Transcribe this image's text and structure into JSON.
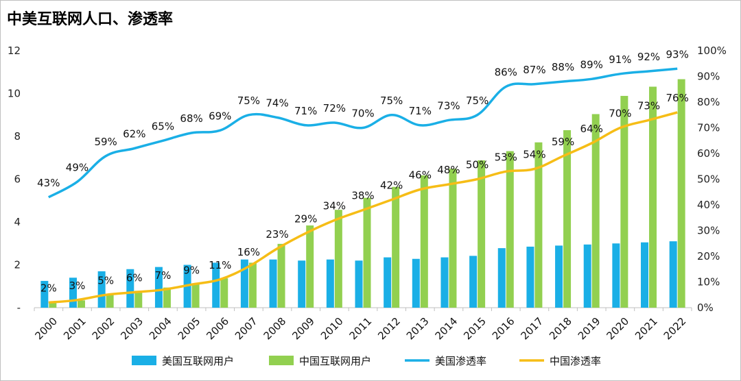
{
  "title": "中美互联网人口、渗透率",
  "colors": {
    "us_users": "#1aafe6",
    "cn_users": "#92d050",
    "us_rate": "#1aafe6",
    "cn_rate": "#f6bd16"
  },
  "chart_data": {
    "type": "bar",
    "title": "中美互联网人口、渗透率",
    "categories": [
      "2000",
      "2001",
      "2002",
      "2003",
      "2004",
      "2005",
      "2006",
      "2007",
      "2008",
      "2009",
      "2010",
      "2011",
      "2012",
      "2013",
      "2014",
      "2015",
      "2016",
      "2017",
      "2018",
      "2019",
      "2020",
      "2021",
      "2022"
    ],
    "y_left": {
      "ylim": [
        0,
        12
      ],
      "ticks": [
        "-",
        "2",
        "4",
        "6",
        "8",
        "10",
        "12"
      ],
      "tick_values": [
        0,
        2,
        4,
        6,
        8,
        10,
        12
      ]
    },
    "y_right": {
      "ylim": [
        0,
        100
      ],
      "ticks": [
        "0%",
        "10%",
        "20%",
        "30%",
        "40%",
        "50%",
        "60%",
        "70%",
        "80%",
        "90%",
        "100%"
      ],
      "tick_values": [
        0,
        10,
        20,
        30,
        40,
        50,
        60,
        70,
        80,
        90,
        100
      ]
    },
    "series": [
      {
        "name": "美国互联网用户",
        "kind": "bar",
        "axis": "left",
        "values": [
          1.25,
          1.4,
          1.7,
          1.8,
          1.9,
          2.0,
          2.1,
          2.25,
          2.25,
          2.2,
          2.25,
          2.2,
          2.35,
          2.28,
          2.35,
          2.42,
          2.78,
          2.85,
          2.9,
          2.95,
          3.0,
          3.05,
          3.1
        ]
      },
      {
        "name": "中国互联网用户",
        "kind": "bar",
        "axis": "left",
        "values": [
          0.22,
          0.34,
          0.59,
          0.79,
          0.94,
          1.11,
          1.37,
          2.1,
          2.98,
          3.84,
          4.57,
          5.13,
          5.64,
          6.18,
          6.49,
          6.88,
          7.31,
          7.72,
          8.29,
          9.04,
          9.89,
          10.32,
          10.67
        ]
      },
      {
        "name": "美国渗透率",
        "kind": "line",
        "axis": "right",
        "values": [
          43,
          49,
          59,
          62,
          65,
          68,
          69,
          75,
          74,
          71,
          72,
          70,
          75,
          71,
          73,
          75,
          86,
          87,
          88,
          89,
          91,
          92,
          93
        ],
        "labels": [
          "43%",
          "49%",
          "59%",
          "62%",
          "65%",
          "68%",
          "69%",
          "75%",
          "74%",
          "71%",
          "72%",
          "70%",
          "75%",
          "71%",
          "73%",
          "75%",
          "86%",
          "87%",
          "88%",
          "89%",
          "91%",
          "92%",
          "93%"
        ]
      },
      {
        "name": "中国渗透率",
        "kind": "line",
        "axis": "right",
        "values": [
          2,
          3,
          5,
          6,
          7,
          9,
          11,
          16,
          23,
          29,
          34,
          38,
          42,
          46,
          48,
          50,
          53,
          54,
          59,
          64,
          70,
          73,
          76
        ],
        "labels": [
          "2%",
          "3%",
          "5%",
          "6%",
          "7%",
          "9%",
          "11%",
          "16%",
          "23%",
          "29%",
          "34%",
          "38%",
          "42%",
          "46%",
          "48%",
          "50%",
          "53%",
          "54%",
          "59%",
          "64%",
          "70%",
          "73%",
          "76%"
        ]
      }
    ],
    "legend": [
      "美国互联网用户",
      "中国互联网用户",
      "美国渗透率",
      "中国渗透率"
    ],
    "legend_position": "bottom"
  }
}
